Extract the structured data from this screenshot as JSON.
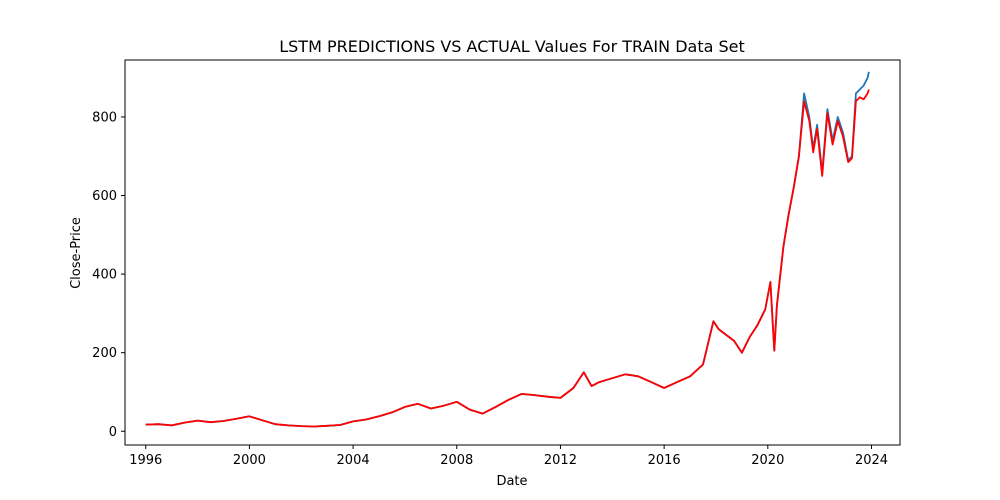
{
  "chart_data": {
    "type": "line",
    "title": "LSTM PREDICTIONS VS ACTUAL Values For TRAIN Data Set",
    "xlabel": "Date",
    "ylabel": "Close-Price",
    "x_axis_type": "date",
    "xlim": [
      1995.2,
      2025.1
    ],
    "ylim": [
      -35,
      945
    ],
    "x_ticks": [
      "1996",
      "2000",
      "2004",
      "2008",
      "2012",
      "2016",
      "2020",
      "2024"
    ],
    "y_ticks": [
      "0",
      "200",
      "400",
      "600",
      "800"
    ],
    "grid": false,
    "legend": "none",
    "series": [
      {
        "color": "#1f77b4",
        "x": [
          1996.0,
          1996.5,
          1997.0,
          1997.5,
          1998.0,
          1998.5,
          1999.0,
          1999.5,
          2000.0,
          2000.5,
          2001.0,
          2001.5,
          2002.0,
          2002.5,
          2003.0,
          2003.5,
          2004.0,
          2004.5,
          2005.0,
          2005.5,
          2006.0,
          2006.5,
          2007.0,
          2007.5,
          2008.0,
          2008.5,
          2009.0,
          2009.5,
          2010.0,
          2010.5,
          2011.0,
          2011.5,
          2012.0,
          2012.5,
          2012.9,
          2013.2,
          2013.5,
          2014.0,
          2014.5,
          2015.0,
          2015.5,
          2016.0,
          2016.5,
          2017.0,
          2017.5,
          2017.9,
          2018.1,
          2018.4,
          2018.7,
          2019.0,
          2019.3,
          2019.6,
          2019.9,
          2020.1,
          2020.25,
          2020.35,
          2020.6,
          2020.8,
          2021.0,
          2021.2,
          2021.4,
          2021.6,
          2021.75,
          2021.9,
          2022.1,
          2022.3,
          2022.5,
          2022.7,
          2022.9,
          2023.1,
          2023.25,
          2023.4,
          2023.55,
          2023.7,
          2023.85,
          2023.9
        ],
        "y": [
          17,
          18,
          15,
          22,
          27,
          23,
          26,
          32,
          38,
          28,
          18,
          15,
          13,
          12,
          14,
          16,
          25,
          30,
          38,
          48,
          62,
          70,
          58,
          65,
          75,
          55,
          45,
          62,
          80,
          95,
          92,
          88,
          85,
          110,
          150,
          115,
          125,
          135,
          145,
          140,
          125,
          110,
          125,
          140,
          170,
          280,
          260,
          245,
          230,
          200,
          240,
          270,
          310,
          380,
          205,
          320,
          470,
          550,
          620,
          700,
          860,
          800,
          720,
          780,
          660,
          820,
          740,
          800,
          760,
          690,
          700,
          860,
          870,
          880,
          900,
          915
        ]
      },
      {
        "color": "#ff0000",
        "x": [
          1996.0,
          1996.5,
          1997.0,
          1997.5,
          1998.0,
          1998.5,
          1999.0,
          1999.5,
          2000.0,
          2000.5,
          2001.0,
          2001.5,
          2002.0,
          2002.5,
          2003.0,
          2003.5,
          2004.0,
          2004.5,
          2005.0,
          2005.5,
          2006.0,
          2006.5,
          2007.0,
          2007.5,
          2008.0,
          2008.5,
          2009.0,
          2009.5,
          2010.0,
          2010.5,
          2011.0,
          2011.5,
          2012.0,
          2012.5,
          2012.9,
          2013.2,
          2013.5,
          2014.0,
          2014.5,
          2015.0,
          2015.5,
          2016.0,
          2016.5,
          2017.0,
          2017.5,
          2017.9,
          2018.1,
          2018.4,
          2018.7,
          2019.0,
          2019.3,
          2019.6,
          2019.9,
          2020.1,
          2020.25,
          2020.35,
          2020.6,
          2020.8,
          2021.0,
          2021.2,
          2021.4,
          2021.6,
          2021.75,
          2021.9,
          2022.1,
          2022.3,
          2022.5,
          2022.7,
          2022.9,
          2023.1,
          2023.25,
          2023.4,
          2023.55,
          2023.7,
          2023.85,
          2023.9
        ],
        "y": [
          17,
          18,
          15,
          22,
          27,
          23,
          26,
          32,
          38,
          28,
          18,
          15,
          13,
          12,
          14,
          16,
          25,
          30,
          38,
          48,
          62,
          70,
          58,
          65,
          75,
          55,
          45,
          62,
          80,
          95,
          92,
          88,
          85,
          110,
          150,
          115,
          125,
          135,
          145,
          140,
          125,
          110,
          125,
          140,
          170,
          280,
          260,
          245,
          230,
          200,
          240,
          270,
          310,
          380,
          205,
          320,
          470,
          550,
          620,
          700,
          840,
          790,
          710,
          770,
          650,
          810,
          730,
          790,
          750,
          685,
          695,
          840,
          850,
          845,
          860,
          870
        ]
      }
    ]
  }
}
